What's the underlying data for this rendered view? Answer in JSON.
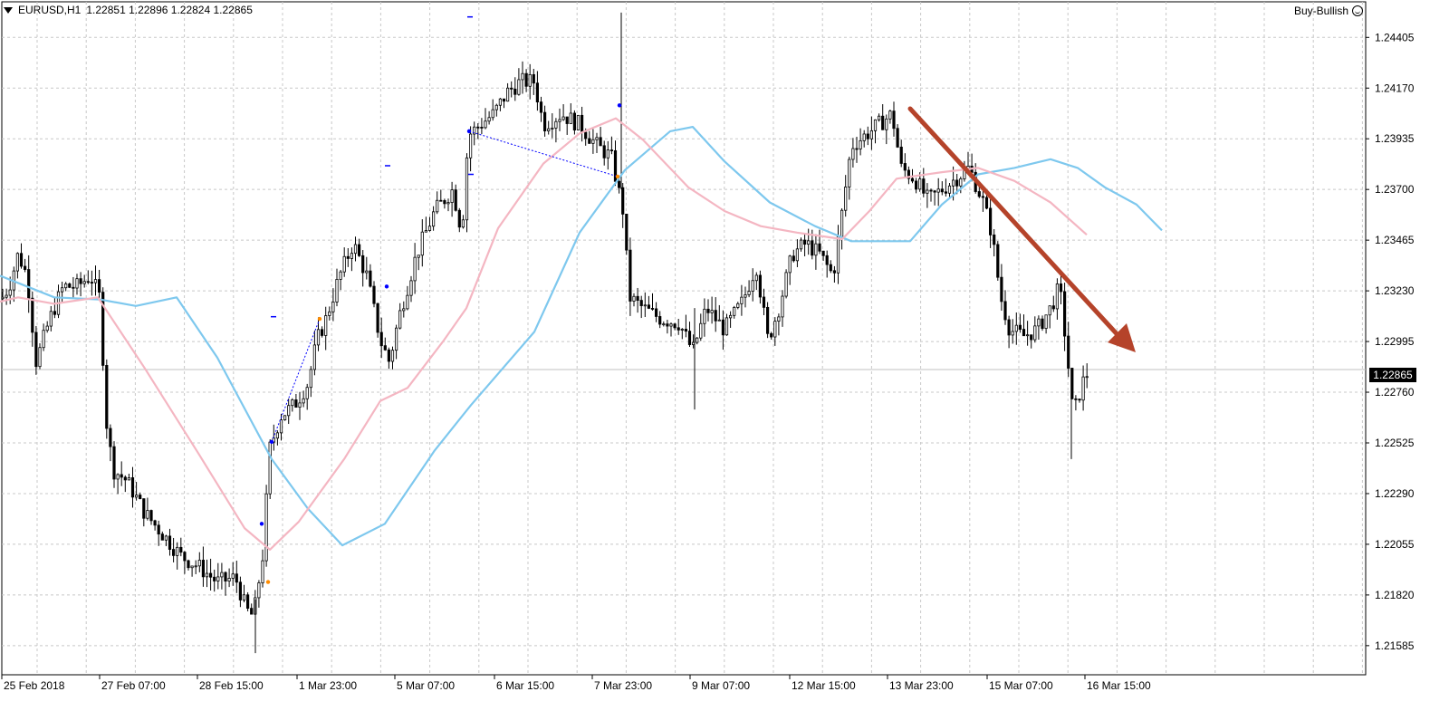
{
  "header": {
    "symbol_timeframe": "EURUSD,H1",
    "ohlc": "1.22851 1.22896 1.22824 1.22865",
    "ea_label": "Buy-Bullish"
  },
  "icons": {
    "menu": "triangle-down-icon",
    "ea_status": "smiley-icon"
  },
  "current_price": "1.22865",
  "colors": {
    "background": "#ffffff",
    "grid": "#c8c8c8",
    "candle": "#000000",
    "ma_fast": "#f4b6c2",
    "ma_slow": "#7ec8ee",
    "arrow": "#b5432a",
    "price_line": "#c0c0c0",
    "signal_blue": "#0000ff",
    "signal_orange": "#ff8c00"
  },
  "chart_data": {
    "type": "candlestick",
    "symbol": "EURUSD",
    "timeframe": "H1",
    "y_axis": {
      "ticks": [
        "1.24405",
        "1.24170",
        "1.23935",
        "1.23700",
        "1.23465",
        "1.23230",
        "1.22995",
        "1.22760",
        "1.22525",
        "1.22290",
        "1.22055",
        "1.21820",
        "1.21585"
      ],
      "ylim": [
        1.2145,
        1.2457
      ]
    },
    "x_axis": {
      "ticks": [
        "25 Feb 2018",
        "27 Feb 07:00",
        "28 Feb 15:00",
        "1 Mar 23:00",
        "5 Mar 07:00",
        "6 Mar 15:00",
        "7 Mar 23:00",
        "9 Mar 07:00",
        "12 Mar 15:00",
        "13 Mar 23:00",
        "15 Mar 07:00",
        "16 Mar 15:00"
      ]
    },
    "grid": true,
    "close_path": [
      [
        0,
        1.2318
      ],
      [
        10,
        1.2325
      ],
      [
        20,
        1.234
      ],
      [
        30,
        1.233
      ],
      [
        40,
        1.229
      ],
      [
        55,
        1.231
      ],
      [
        70,
        1.2325
      ],
      [
        85,
        1.2325
      ],
      [
        100,
        1.233
      ],
      [
        110,
        1.232
      ],
      [
        118,
        1.226
      ],
      [
        125,
        1.224
      ],
      [
        140,
        1.2235
      ],
      [
        160,
        1.222
      ],
      [
        180,
        1.221
      ],
      [
        200,
        1.22
      ],
      [
        220,
        1.2195
      ],
      [
        240,
        1.2188
      ],
      [
        260,
        1.219
      ],
      [
        272,
        1.2175
      ],
      [
        280,
        1.2172
      ],
      [
        290,
        1.22
      ],
      [
        298,
        1.225
      ],
      [
        310,
        1.2265
      ],
      [
        325,
        1.227
      ],
      [
        340,
        1.228
      ],
      [
        350,
        1.23
      ],
      [
        360,
        1.231
      ],
      [
        375,
        1.233
      ],
      [
        390,
        1.2345
      ],
      [
        405,
        1.233
      ],
      [
        420,
        1.23
      ],
      [
        430,
        1.229
      ],
      [
        440,
        1.231
      ],
      [
        460,
        1.234
      ],
      [
        480,
        1.236
      ],
      [
        500,
        1.237
      ],
      [
        510,
        1.235
      ],
      [
        517,
        1.2395
      ],
      [
        530,
        1.24
      ],
      [
        545,
        1.2405
      ],
      [
        560,
        1.2415
      ],
      [
        575,
        1.242
      ],
      [
        590,
        1.242
      ],
      [
        600,
        1.24
      ],
      [
        620,
        1.2405
      ],
      [
        640,
        1.24
      ],
      [
        660,
        1.239
      ],
      [
        675,
        1.2385
      ],
      [
        688,
        1.236
      ],
      [
        695,
        1.232
      ],
      [
        710,
        1.2315
      ],
      [
        730,
        1.231
      ],
      [
        750,
        1.2308
      ],
      [
        765,
        1.2295
      ],
      [
        780,
        1.2315
      ],
      [
        800,
        1.2305
      ],
      [
        820,
        1.2318
      ],
      [
        835,
        1.2335
      ],
      [
        848,
        1.23
      ],
      [
        860,
        1.2315
      ],
      [
        875,
        1.234
      ],
      [
        890,
        1.2345
      ],
      [
        905,
        1.234
      ],
      [
        920,
        1.233
      ],
      [
        930,
        1.236
      ],
      [
        940,
        1.239
      ],
      [
        955,
        1.2395
      ],
      [
        970,
        1.24
      ],
      [
        985,
        1.2405
      ],
      [
        995,
        1.238
      ],
      [
        1010,
        1.2375
      ],
      [
        1025,
        1.2365
      ],
      [
        1040,
        1.237
      ],
      [
        1055,
        1.2375
      ],
      [
        1070,
        1.238
      ],
      [
        1085,
        1.2365
      ],
      [
        1095,
        1.235
      ],
      [
        1105,
        1.232
      ],
      [
        1115,
        1.2305
      ],
      [
        1130,
        1.2302
      ],
      [
        1145,
        1.2305
      ],
      [
        1160,
        1.2315
      ],
      [
        1170,
        1.2325
      ],
      [
        1178,
        1.2295
      ],
      [
        1185,
        1.2265
      ],
      [
        1195,
        1.228
      ],
      [
        1202,
        1.2286
      ]
    ],
    "ma_fast": [
      [
        0,
        1.2318
      ],
      [
        20,
        1.232
      ],
      [
        60,
        1.2317
      ],
      [
        108,
        1.232
      ],
      [
        160,
        1.2287
      ],
      [
        220,
        1.2247
      ],
      [
        270,
        1.2213
      ],
      [
        298,
        1.2203
      ],
      [
        330,
        1.2216
      ],
      [
        380,
        1.2245
      ],
      [
        420,
        1.2272
      ],
      [
        450,
        1.2278
      ],
      [
        490,
        1.23
      ],
      [
        515,
        1.2315
      ],
      [
        550,
        1.2352
      ],
      [
        600,
        1.2382
      ],
      [
        640,
        1.2396
      ],
      [
        680,
        1.2403
      ],
      [
        710,
        1.2393
      ],
      [
        760,
        1.2371
      ],
      [
        800,
        1.236
      ],
      [
        840,
        1.2353
      ],
      [
        880,
        1.235
      ],
      [
        930,
        1.2347
      ],
      [
        960,
        1.236
      ],
      [
        990,
        1.2375
      ],
      [
        1040,
        1.2378
      ],
      [
        1080,
        1.238
      ],
      [
        1120,
        1.2374
      ],
      [
        1160,
        1.2364
      ],
      [
        1200,
        1.2349
      ]
    ],
    "ma_slow": [
      [
        0,
        1.233
      ],
      [
        60,
        1.232
      ],
      [
        110,
        1.2319
      ],
      [
        150,
        1.2316
      ],
      [
        195,
        1.232
      ],
      [
        240,
        1.2292
      ],
      [
        300,
        1.2245
      ],
      [
        340,
        1.2222
      ],
      [
        378,
        1.2205
      ],
      [
        425,
        1.2215
      ],
      [
        480,
        1.2249
      ],
      [
        520,
        1.227
      ],
      [
        590,
        1.2304
      ],
      [
        640,
        1.235
      ],
      [
        690,
        1.2379
      ],
      [
        740,
        1.2397
      ],
      [
        765,
        1.2399
      ],
      [
        800,
        1.2383
      ],
      [
        850,
        1.2364
      ],
      [
        900,
        1.2353
      ],
      [
        940,
        1.2346
      ],
      [
        1005,
        1.2346
      ],
      [
        1040,
        1.2363
      ],
      [
        1080,
        1.2377
      ],
      [
        1120,
        1.238
      ],
      [
        1160,
        1.2384
      ],
      [
        1190,
        1.238
      ],
      [
        1220,
        1.2371
      ],
      [
        1255,
        1.2363
      ],
      [
        1283,
        1.2351
      ]
    ]
  }
}
